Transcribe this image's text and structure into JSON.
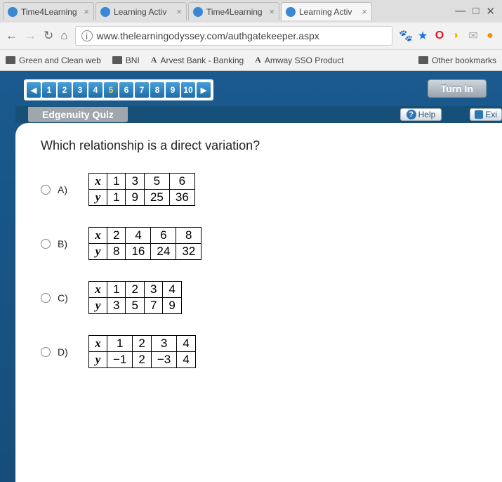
{
  "browser": {
    "tabs": [
      {
        "label": "Time4Learning"
      },
      {
        "label": "Learning Activ"
      },
      {
        "label": "Time4Learning"
      },
      {
        "label": "Learning Activ"
      }
    ],
    "url": "www.thelearningodyssey.com/authgatekeeper.aspx",
    "bookmarks": [
      {
        "label": "Green and Clean web"
      },
      {
        "label": "BNI"
      },
      {
        "label": "Arvest Bank - Banking"
      },
      {
        "label": "Amway SSO Product"
      }
    ],
    "other_label": "Other bookmarks"
  },
  "pager": {
    "items": [
      "1",
      "2",
      "3",
      "4",
      "5",
      "6",
      "7",
      "8",
      "9",
      "10"
    ],
    "selected": "5"
  },
  "turn_in_label": "Turn In",
  "quiz_title": "Edgenuity Quiz",
  "help_label": "Help",
  "exit_label": "Exi",
  "question": "Which relationship is a direct variation?",
  "options": {
    "A": {
      "label": "A)",
      "rows": [
        [
          "x",
          "1",
          "3",
          "5",
          "6"
        ],
        [
          "y",
          "1",
          "9",
          "25",
          "36"
        ]
      ]
    },
    "B": {
      "label": "B)",
      "rows": [
        [
          "x",
          "2",
          "4",
          "6",
          "8"
        ],
        [
          "y",
          "8",
          "16",
          "24",
          "32"
        ]
      ]
    },
    "C": {
      "label": "C)",
      "rows": [
        [
          "x",
          "1",
          "2",
          "3",
          "4"
        ],
        [
          "y",
          "3",
          "5",
          "7",
          "9"
        ]
      ]
    },
    "D": {
      "label": "D)",
      "rows": [
        [
          "x",
          "1",
          "2",
          "3",
          "4"
        ],
        [
          "y",
          "−1",
          "2",
          "−3",
          "4"
        ]
      ]
    }
  }
}
